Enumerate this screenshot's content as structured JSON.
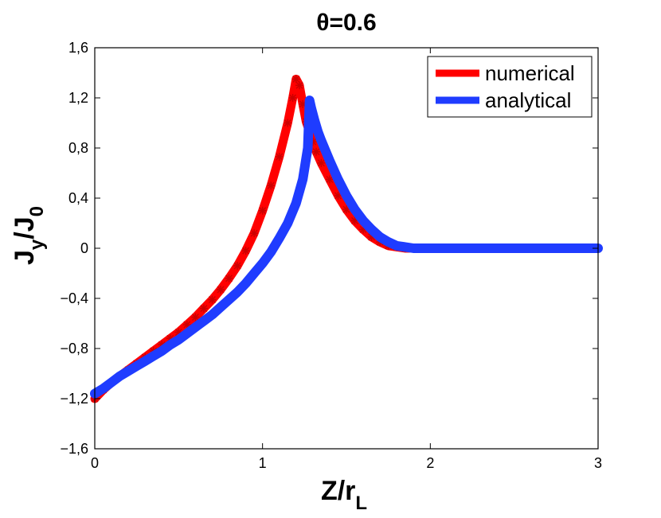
{
  "chart_data": {
    "type": "line",
    "title": "θ=0.6",
    "xlabel": {
      "main": "Z/r",
      "sub": "L"
    },
    "ylabel": {
      "main": "J",
      "sub1": "y",
      "mid": "/J",
      "sub2": "0"
    },
    "xlim": [
      0,
      3
    ],
    "ylim": [
      -1.6,
      1.6
    ],
    "xticks": [
      0,
      1,
      2,
      3
    ],
    "xtick_labels": [
      "0",
      "1",
      "2",
      "3"
    ],
    "yticks": [
      -1.6,
      -1.2,
      -0.8,
      -0.4,
      0,
      0.4,
      0.8,
      1.2,
      1.6
    ],
    "ytick_labels": [
      "−1,6",
      "−1,2",
      "−0,8",
      "−0,4",
      "0",
      "0,4",
      "0,8",
      "1,2",
      "1,6"
    ],
    "grid": false,
    "legend_position": "top-right",
    "series": [
      {
        "name": "numerical",
        "color": "#ff0000",
        "marker": "star",
        "x": [
          0.0,
          0.05,
          0.1,
          0.15,
          0.2,
          0.25,
          0.3,
          0.35,
          0.4,
          0.45,
          0.5,
          0.55,
          0.6,
          0.65,
          0.7,
          0.75,
          0.8,
          0.85,
          0.9,
          0.95,
          1.0,
          1.05,
          1.1,
          1.15,
          1.18,
          1.2,
          1.22,
          1.24,
          1.26,
          1.28,
          1.3,
          1.32,
          1.35,
          1.4,
          1.45,
          1.5,
          1.55,
          1.6,
          1.65,
          1.7,
          1.75,
          1.8,
          1.85,
          1.9,
          2.0,
          2.2,
          2.4,
          2.6,
          2.8,
          3.0
        ],
        "y": [
          -1.2,
          -1.13,
          -1.07,
          -1.02,
          -0.97,
          -0.92,
          -0.87,
          -0.82,
          -0.77,
          -0.72,
          -0.67,
          -0.61,
          -0.55,
          -0.48,
          -0.41,
          -0.33,
          -0.24,
          -0.14,
          -0.02,
          0.12,
          0.3,
          0.5,
          0.73,
          1.0,
          1.2,
          1.35,
          1.3,
          1.15,
          1.01,
          0.93,
          0.85,
          0.77,
          0.68,
          0.55,
          0.42,
          0.31,
          0.22,
          0.15,
          0.09,
          0.05,
          0.02,
          0.01,
          0.0,
          0.0,
          0.0,
          0.0,
          0.0,
          0.0,
          0.0,
          0.0
        ]
      },
      {
        "name": "analytical",
        "color": "#1f3cff",
        "marker": "none",
        "x": [
          0.0,
          0.05,
          0.1,
          0.15,
          0.2,
          0.25,
          0.3,
          0.35,
          0.4,
          0.45,
          0.5,
          0.55,
          0.6,
          0.65,
          0.7,
          0.75,
          0.8,
          0.85,
          0.9,
          0.95,
          1.0,
          1.05,
          1.1,
          1.15,
          1.2,
          1.24,
          1.27,
          1.28,
          1.29,
          1.31,
          1.33,
          1.35,
          1.4,
          1.45,
          1.5,
          1.55,
          1.6,
          1.65,
          1.7,
          1.75,
          1.8,
          1.85,
          1.9,
          2.0,
          2.2,
          2.4,
          2.6,
          2.8,
          3.0
        ],
        "y": [
          -1.16,
          -1.12,
          -1.07,
          -1.02,
          -0.98,
          -0.94,
          -0.9,
          -0.86,
          -0.82,
          -0.77,
          -0.73,
          -0.68,
          -0.63,
          -0.58,
          -0.53,
          -0.47,
          -0.41,
          -0.35,
          -0.28,
          -0.2,
          -0.12,
          -0.03,
          0.08,
          0.2,
          0.36,
          0.55,
          0.8,
          1.18,
          1.12,
          1.02,
          0.93,
          0.86,
          0.7,
          0.55,
          0.42,
          0.31,
          0.22,
          0.15,
          0.09,
          0.05,
          0.02,
          0.01,
          0.0,
          0.0,
          0.0,
          0.0,
          0.0,
          0.0,
          0.0
        ]
      }
    ]
  }
}
